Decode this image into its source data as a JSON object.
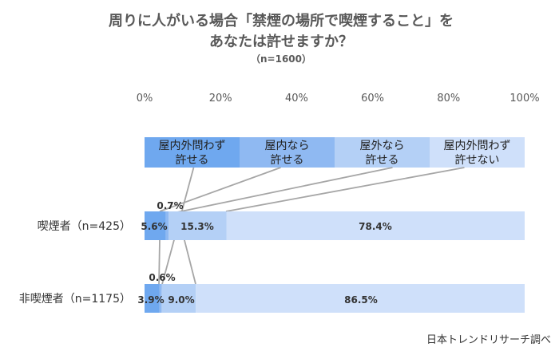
{
  "chart_data": {
    "type": "bar",
    "orientation": "horizontal",
    "stacked": true,
    "percent": true,
    "title_line1": "周りに人がいる場合「禁煙の場所で喫煙すること」を",
    "title_line2": "あなたは許せますか？",
    "subtitle": "（n=1600）",
    "x_ticks": [
      "0%",
      "20%",
      "40%",
      "60%",
      "80%",
      "100%"
    ],
    "xlim": [
      0,
      100
    ],
    "legend_position": "top",
    "categories": [
      "喫煙者（n=425）",
      "非喫煙者（n=1175）"
    ],
    "series": [
      {
        "name": "屋内外問わず\n許せる",
        "color": "#6fa8ef",
        "values": [
          5.6,
          3.9
        ],
        "labels": [
          "5.6%",
          "3.9%"
        ]
      },
      {
        "name": "屋内なら\n許せる",
        "color": "#8fb9f2",
        "values": [
          0.7,
          0.6
        ],
        "labels": [
          "0.7%",
          "0.6%"
        ]
      },
      {
        "name": "屋外なら\n許せる",
        "color": "#b4d0f6",
        "values": [
          15.3,
          9.0
        ],
        "labels": [
          "15.3%",
          "9.0%"
        ]
      },
      {
        "name": "屋内外問わず\n許せない",
        "color": "#cfe0fa",
        "values": [
          78.4,
          86.5
        ],
        "labels": [
          "78.4%",
          "86.5%"
        ]
      }
    ],
    "source": "日本トレンドリサーチ調べ"
  }
}
